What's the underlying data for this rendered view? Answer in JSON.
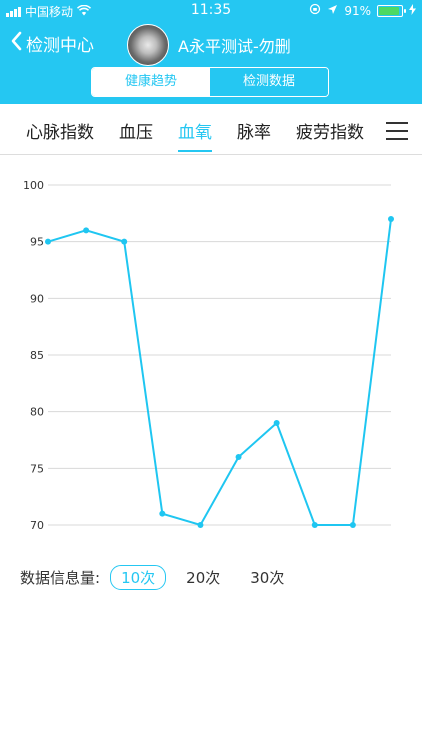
{
  "status_bar": {
    "carrier": "中国移动",
    "time": "11:35",
    "battery_percent": "91%"
  },
  "nav": {
    "back_label": "检测中心",
    "title": "A永平测试-勿删"
  },
  "segment": {
    "options": [
      "健康趋势",
      "检测数据"
    ],
    "selected": "健康趋势"
  },
  "tabs": {
    "items": [
      "心脉指数",
      "血压",
      "血氧",
      "脉率",
      "疲劳指数"
    ],
    "selected": "血氧"
  },
  "colors": {
    "accent": "#25c7f2",
    "line": "#1fc6f1",
    "grid": "#d8d8d8"
  },
  "chart_data": {
    "type": "line",
    "title": "",
    "xlabel": "",
    "ylabel": "",
    "ylim": [
      70,
      100
    ],
    "yticks": [
      70,
      75,
      80,
      85,
      90,
      95,
      100
    ],
    "grid": true,
    "x": [
      1,
      2,
      3,
      4,
      5,
      6,
      7,
      8,
      9,
      10
    ],
    "values": [
      95,
      96,
      95,
      71,
      70,
      76,
      79,
      70,
      70,
      97
    ]
  },
  "info": {
    "label": "数据信息量:",
    "options": [
      "10次",
      "20次",
      "30次"
    ],
    "selected": "10次"
  }
}
